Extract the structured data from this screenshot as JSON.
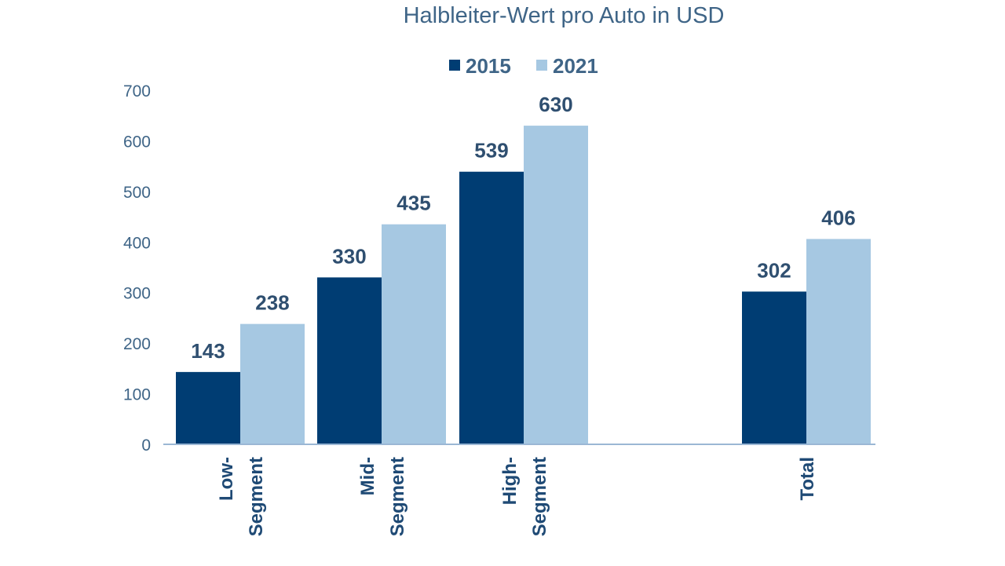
{
  "chart_data": {
    "type": "bar",
    "title": "Halbleiter-Wert pro Auto in USD",
    "xlabel": "",
    "ylabel": "",
    "ylim": [
      0,
      700
    ],
    "yticks": [
      0,
      100,
      200,
      300,
      400,
      500,
      600,
      700
    ],
    "grid": false,
    "legend_position": "top-center",
    "categories": [
      [
        "Low-",
        "Segment"
      ],
      [
        "Mid-",
        "Segment"
      ],
      [
        "High-",
        "Segment"
      ],
      [
        "",
        "Total"
      ]
    ],
    "series": [
      {
        "name": "2015",
        "color": "#003d73",
        "values": [
          143,
          330,
          539,
          302
        ]
      },
      {
        "name": "2021",
        "color": "#a6c8e2",
        "values": [
          238,
          435,
          630,
          406
        ]
      }
    ],
    "axis_color": "#9bb7d4"
  }
}
